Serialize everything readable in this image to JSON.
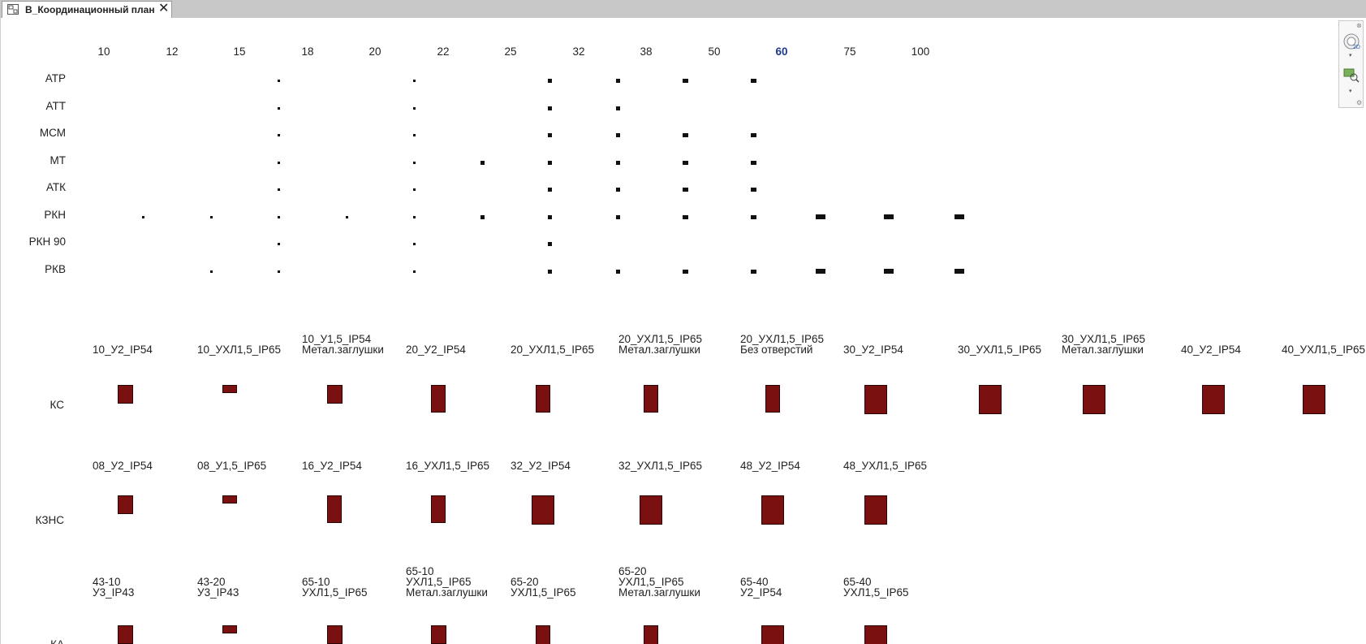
{
  "tab": {
    "title": "В_Координационный план",
    "icon": "sheet-view-icon",
    "close_icon": "close-icon"
  },
  "colors": {
    "accent_header": "#1f3a8a",
    "fitting_fill": "#7a1010",
    "fitting_border": "#2a0505",
    "tab_strip": "#c8c8c8"
  },
  "matrix": {
    "columns": [
      "10",
      "12",
      "15",
      "18",
      "20",
      "22",
      "25",
      "32",
      "38",
      "50",
      "60",
      "75",
      "100"
    ],
    "highlighted_column": "60",
    "rows": [
      {
        "label": "АТР",
        "present": [
          "15",
          "20",
          "25",
          "32",
          "38",
          "50"
        ]
      },
      {
        "label": "АТТ",
        "present": [
          "15",
          "20",
          "25",
          "32"
        ]
      },
      {
        "label": "МСМ",
        "present": [
          "15",
          "20",
          "25",
          "32",
          "38",
          "50"
        ]
      },
      {
        "label": "МТ",
        "present": [
          "15",
          "20",
          "22",
          "25",
          "32",
          "38",
          "50"
        ]
      },
      {
        "label": "АТК",
        "present": [
          "15",
          "20",
          "25",
          "32",
          "38",
          "50"
        ]
      },
      {
        "label": "РКН",
        "present": [
          "10",
          "12",
          "15",
          "18",
          "20",
          "22",
          "25",
          "32",
          "38",
          "50",
          "60",
          "75",
          "100"
        ]
      },
      {
        "label": "РКН 90",
        "present": [
          "15",
          "20",
          "25"
        ]
      },
      {
        "label": "РКВ",
        "present": [
          "12",
          "15",
          "20",
          "25",
          "32",
          "38",
          "50",
          "60",
          "75",
          "100"
        ]
      }
    ]
  },
  "groups": [
    {
      "label": "КС",
      "items": [
        {
          "name": "10_У2_IP54",
          "size": "s"
        },
        {
          "name": "10_УХЛ1,5_IP65",
          "size": "xs"
        },
        {
          "name": "10_У1,5_IP54\nМетал.заглушки",
          "size": "s"
        },
        {
          "name": "20_У2_IP54",
          "size": "m"
        },
        {
          "name": "20_УХЛ1,5_IP65",
          "size": "m"
        },
        {
          "name": "20_УХЛ1,5_IP65\nМетал.заглушки",
          "size": "m"
        },
        {
          "name": "20_УХЛ1,5_IP65\nБез отверстий",
          "size": "m"
        },
        {
          "name": "30_У2_IP54",
          "size": "l"
        },
        {
          "name": "30_УХЛ1,5_IP65",
          "size": "l"
        },
        {
          "name": "30_УХЛ1,5_IP65\nМетал.заглушки",
          "size": "l"
        },
        {
          "name": "40_У2_IP54",
          "size": "l"
        },
        {
          "name": "40_УХЛ1,5_IP65",
          "size": "l"
        }
      ]
    },
    {
      "label": "КЗНС",
      "items": [
        {
          "name": "08_У2_IP54",
          "size": "s"
        },
        {
          "name": "08_У1,5_IP65",
          "size": "xs"
        },
        {
          "name": "16_У2_IP54",
          "size": "m"
        },
        {
          "name": "16_УХЛ1,5_IP65",
          "size": "m"
        },
        {
          "name": "32_У2_IP54",
          "size": "xl"
        },
        {
          "name": "32_УХЛ1,5_IP65",
          "size": "xl"
        },
        {
          "name": "48_У2_IP54",
          "size": "xl"
        },
        {
          "name": "48_УХЛ1,5_IP65",
          "size": "xl"
        }
      ]
    },
    {
      "label": "КА",
      "items": [
        {
          "name": "43-10\nУ3_IP43",
          "size": "s"
        },
        {
          "name": "43-20\nУ3_IP43",
          "size": "xs"
        },
        {
          "name": "65-10\nУХЛ1,5_IP65",
          "size": "s"
        },
        {
          "name": "65-10\nУХЛ1,5_IP65\nМетал.заглушки",
          "size": "s"
        },
        {
          "name": "65-20\nУХЛ1,5_IP65",
          "size": "m"
        },
        {
          "name": "65-20\nУХЛ1,5_IP65\nМетал.заглушки",
          "size": "m"
        },
        {
          "name": "65-40\nУ2_IP54",
          "size": "l"
        },
        {
          "name": "65-40\nУХЛ1,5_IP65",
          "size": "l"
        }
      ]
    }
  ],
  "navbar": {
    "tools": [
      "steering-wheel-2d-icon",
      "zoom-region-icon"
    ]
  }
}
